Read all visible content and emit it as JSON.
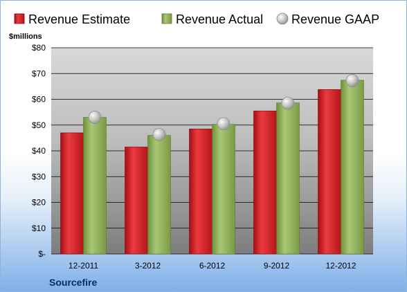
{
  "chart_data": {
    "type": "bar",
    "categories": [
      "12-2011",
      "3-2012",
      "6-2012",
      "9-2012",
      "12-2012"
    ],
    "series": [
      {
        "name": "Revenue Estimate",
        "kind": "bar",
        "color": "#d0262b",
        "values": [
          47,
          41.5,
          48.5,
          55.5,
          63.8
        ]
      },
      {
        "name": "Revenue Actual",
        "kind": "bar",
        "color": "#8fb159",
        "values": [
          53,
          46,
          50.3,
          58.6,
          67.4
        ]
      },
      {
        "name": "Revenue GAAP",
        "kind": "marker",
        "color": "#b8b8b8",
        "values": [
          53,
          46.3,
          50.5,
          58.5,
          67.3
        ]
      }
    ],
    "ylabel": "$millions",
    "ylim": [
      0,
      80
    ],
    "yticks": [
      0,
      10,
      20,
      30,
      40,
      50,
      60,
      70,
      80
    ],
    "ytick_labels": [
      "$-",
      "$10",
      "$20",
      "$30",
      "$40",
      "$50",
      "$60",
      "$70",
      "$80"
    ],
    "grid": true,
    "legend": "top"
  },
  "footer": {
    "company": "Sourcefire"
  }
}
